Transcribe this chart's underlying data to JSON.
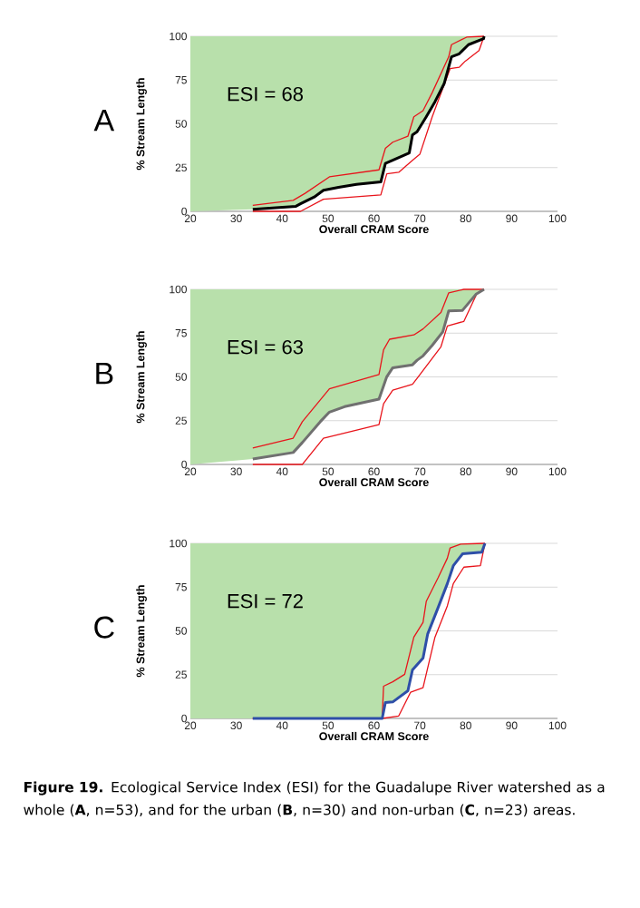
{
  "chart_data": [
    {
      "type": "line",
      "title": "A",
      "xlabel": "Overall CRAM Score",
      "ylabel": "% Stream Length",
      "xlim": [
        20,
        100
      ],
      "xticks": [
        20,
        30,
        40,
        50,
        60,
        70,
        80,
        90,
        100
      ],
      "ylim": [
        0,
        100
      ],
      "yticks": [
        0,
        25,
        50,
        75,
        100
      ],
      "grid": "y",
      "annotations": [
        "ESI = 68"
      ],
      "series": [
        {
          "color": "#e8141b",
          "x": [
            33.6,
            42.4,
            45,
            50.3,
            61.1,
            62.5,
            64.1,
            67.4,
            68.7,
            70.7,
            72.7,
            76.3,
            76.9,
            80.2,
            84
          ],
          "values": [
            3.4,
            6.3,
            10.3,
            19.7,
            23.7,
            36,
            39.5,
            42.9,
            54,
            57.5,
            67.8,
            88.3,
            95.2,
            99.5,
            100
          ]
        },
        {
          "color": "#e8141b",
          "x": [
            33.6,
            44,
            49,
            61.5,
            62.8,
            65.4,
            68.4,
            70,
            72.7,
            76.6,
            78.6,
            79.9,
            82.9,
            84
          ],
          "values": [
            0,
            0,
            6.9,
            9.4,
            21.4,
            22.3,
            29.2,
            32.6,
            54,
            81.5,
            82.3,
            85.8,
            91.8,
            100
          ]
        },
        {
          "color": "#000000",
          "x": [
            20,
            33.6,
            43,
            44,
            47,
            49,
            52.3,
            56.2,
            61.5,
            62.5,
            64.1,
            67.7,
            68.4,
            69.4,
            71.4,
            73.3,
            75.3,
            76.9,
            78.6,
            80.6,
            83.9,
            84
          ],
          "values": [
            null,
            1.2,
            2.9,
            4.3,
            8.2,
            12,
            13.7,
            15.4,
            16.8,
            27.4,
            29.2,
            33.4,
            43.7,
            45.5,
            54,
            62.6,
            72.9,
            88.3,
            90,
            95.2,
            98.6,
            100
          ],
          "lower": [
            0,
            1.2,
            2.9,
            4.3,
            8.2,
            12,
            13.7,
            15.4,
            16.8,
            27.4,
            29.2,
            33.4,
            43.7,
            45.5,
            54,
            62.6,
            72.9,
            88.3,
            90,
            95.2,
            98.6,
            100
          ],
          "upper": [
            100,
            100,
            100,
            100,
            100,
            100,
            100,
            100,
            100,
            100,
            100,
            100,
            100,
            100,
            100,
            100,
            100,
            100,
            100,
            100,
            100,
            100
          ]
        }
      ]
    },
    {
      "type": "line",
      "title": "B",
      "xlabel": "Overall CRAM Score",
      "ylabel": "% Stream Length",
      "xlim": [
        20,
        100
      ],
      "xticks": [
        20,
        30,
        40,
        50,
        60,
        70,
        80,
        90,
        100
      ],
      "ylim": [
        0,
        100
      ],
      "yticks": [
        0,
        25,
        50,
        75,
        100
      ],
      "grid": "y",
      "annotations": [
        "ESI = 63"
      ],
      "series": [
        {
          "color": "#e8141b",
          "x": [
            33.6,
            42.4,
            44.4,
            50.3,
            61.1,
            62.1,
            63.4,
            68.7,
            70.7,
            74.6,
            76.3,
            79.6,
            84
          ],
          "values": [
            9.4,
            15,
            24.4,
            43.2,
            51.3,
            65.5,
            71.5,
            74,
            77.4,
            86.8,
            98,
            100,
            100
          ]
        },
        {
          "color": "#e8141b",
          "x": [
            33.6,
            44.4,
            49,
            61.1,
            62.1,
            64.1,
            68.4,
            69.4,
            74.6,
            76,
            79.6,
            82.5,
            84
          ],
          "values": [
            0,
            0,
            15,
            22.7,
            34.7,
            42.4,
            45.8,
            49.2,
            67.2,
            79.1,
            81.7,
            97.9,
            100
          ]
        },
        {
          "color": "#707070",
          "x": [
            20,
            33.6,
            42.4,
            44.4,
            48.3,
            50.3,
            53.6,
            61.1,
            62.8,
            64.1,
            68.4,
            69.4,
            70.7,
            72.7,
            75,
            76.3,
            79.3,
            82.2,
            84
          ],
          "values": [
            null,
            3.1,
            6.8,
            12.5,
            24.4,
            29.9,
            33,
            37.3,
            50.1,
            55.2,
            56.9,
            59.5,
            62,
            68,
            75.7,
            87.7,
            88,
            97.1,
            100
          ],
          "lower": [
            0,
            3.1,
            6.8,
            12.5,
            24.4,
            29.9,
            33,
            37.3,
            50.1,
            55.2,
            56.9,
            59.5,
            62,
            68,
            75.7,
            87.7,
            88,
            97.1,
            100
          ],
          "upper": [
            100,
            100,
            100,
            100,
            100,
            100,
            100,
            100,
            100,
            100,
            100,
            100,
            100,
            100,
            100,
            100,
            100,
            100,
            100
          ]
        }
      ]
    },
    {
      "type": "line",
      "title": "C",
      "xlabel": "Overall CRAM Score",
      "ylabel": "% Stream Length",
      "xlim": [
        20,
        100
      ],
      "xticks": [
        20,
        30,
        40,
        50,
        60,
        70,
        80,
        90,
        100
      ],
      "ylim": [
        0,
        100
      ],
      "yticks": [
        0,
        25,
        50,
        75,
        100
      ],
      "grid": "y",
      "annotations": [
        "ESI = 72",
        "**Figure 19.** Ecological Service Index (ESI) for the Guadalupe River watershed as a whole (**A**, n=53), and for the urban (**B**, n=30) and non-urban (**C**, n=23) areas."
      ],
      "series": [
        {
          "color": "#e8141b",
          "x": [
            33.6,
            61.8,
            62.1,
            64.1,
            66.7,
            68.7,
            70.7,
            71.4,
            74,
            76,
            76.6,
            78.9,
            84.2
          ],
          "values": [
            0,
            0,
            18.4,
            20.9,
            25.2,
            46.4,
            54.9,
            66.8,
            80.4,
            91.5,
            97.4,
            99.5,
            100
          ]
        },
        {
          "color": "#e8141b",
          "x": [
            33.6,
            61.8,
            65.4,
            68,
            70.7,
            73.3,
            76,
            77.3,
            79.6,
            83.2,
            84.2
          ],
          "values": [
            0,
            0,
            1.4,
            15,
            17.5,
            46.4,
            64.3,
            77,
            86.4,
            87.2,
            100
          ]
        },
        {
          "color": "#2e4fa8",
          "x": [
            20,
            33.6,
            61.8,
            62.5,
            64.1,
            67.4,
            68.4,
            70.7,
            71.7,
            74,
            76,
            77.3,
            79.3,
            83.5,
            84.2
          ],
          "values": [
            null,
            0,
            0,
            9.1,
            9.4,
            15.8,
            27.7,
            34.5,
            48.1,
            63.4,
            77,
            87.2,
            94,
            94.9,
            100
          ],
          "lower": [
            0,
            0,
            0,
            9.1,
            9.4,
            15.8,
            27.7,
            34.5,
            48.1,
            63.4,
            77,
            87.2,
            94,
            94.9,
            100
          ],
          "upper": [
            100,
            100,
            100,
            100,
            100,
            100,
            100,
            100,
            100,
            100,
            100,
            100,
            100,
            100,
            100
          ]
        }
      ]
    }
  ]
}
